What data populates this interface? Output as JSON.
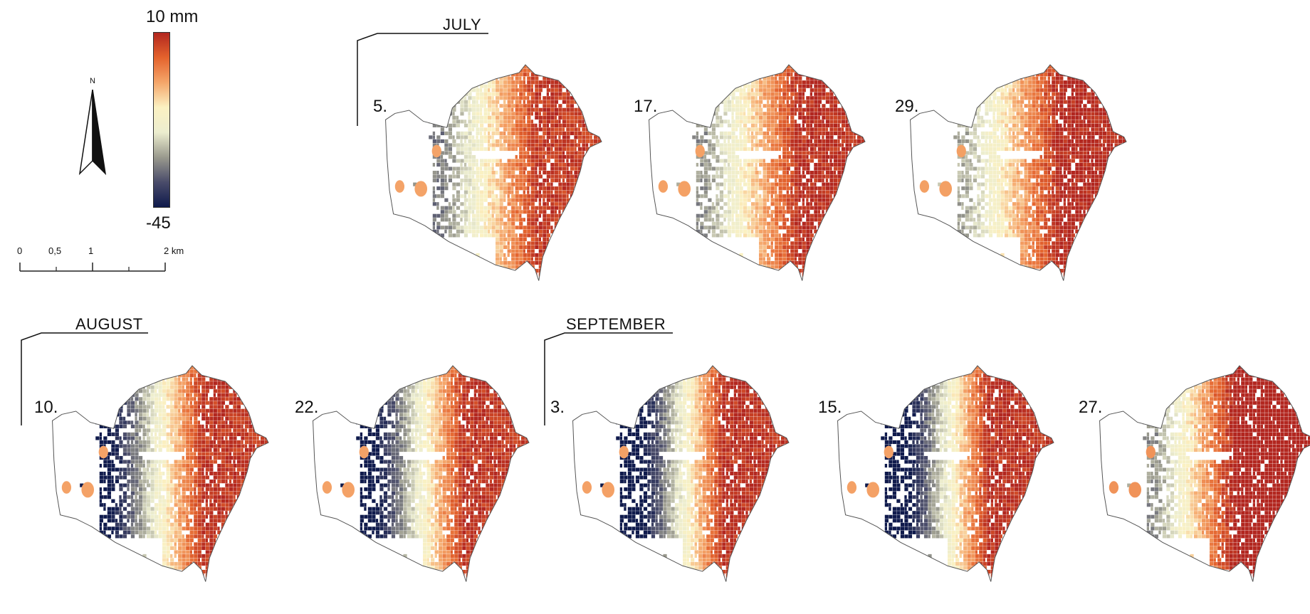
{
  "legend": {
    "max_label": "10 mm",
    "min_label": "-45",
    "colors": [
      "#b2261f",
      "#e4632d",
      "#f5a66a",
      "#fbf1c2",
      "#ecedcf",
      "#9a9a8e",
      "#4a4c6a",
      "#0f1a4c"
    ]
  },
  "north_arrow": {
    "label": "N"
  },
  "scale_bar": {
    "labels": [
      "0",
      "0,5",
      "1",
      "2 km"
    ]
  },
  "months": [
    {
      "id": "july",
      "label": "JULY"
    },
    {
      "id": "august",
      "label": "AUGUST"
    },
    {
      "id": "september",
      "label": "SEPTEMBER"
    }
  ],
  "panels": [
    {
      "month": "july",
      "label": "5.",
      "west": 0.25,
      "darken": 0.0
    },
    {
      "month": "july",
      "label": "17.",
      "west": 0.2,
      "darken": 0.05
    },
    {
      "month": "july",
      "label": "29.",
      "west": 0.15,
      "darken": 0.08
    },
    {
      "month": "august",
      "label": "10.",
      "west": 0.55,
      "darken": 0.02
    },
    {
      "month": "august",
      "label": "22.",
      "west": 0.6,
      "darken": 0.02
    },
    {
      "month": "september",
      "label": "3.",
      "west": 0.7,
      "darken": 0.04
    },
    {
      "month": "september",
      "label": "15.",
      "west": 0.72,
      "darken": 0.04
    },
    {
      "month": "september",
      "label": "27.",
      "west": 0.2,
      "darken": 0.35
    }
  ]
}
